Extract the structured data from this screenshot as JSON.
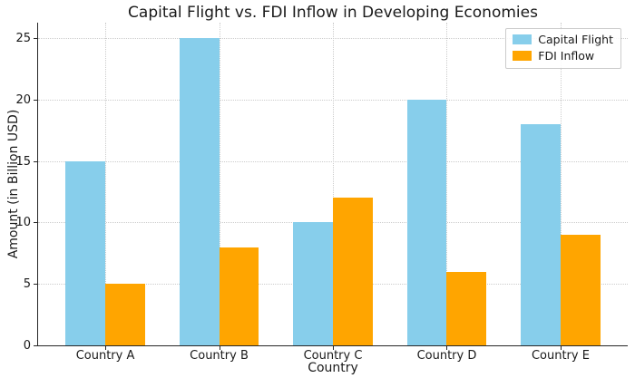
{
  "chart_data": {
    "type": "bar",
    "title": "Capital Flight vs. FDI Inflow in Developing Economies",
    "xlabel": "Country",
    "ylabel": "Amount (in Billion USD)",
    "categories": [
      "Country A",
      "Country B",
      "Country C",
      "Country D",
      "Country E"
    ],
    "series": [
      {
        "name": "Capital Flight",
        "color": "#87CEEB",
        "values": [
          15,
          25,
          10,
          20,
          18
        ]
      },
      {
        "name": "FDI Inflow",
        "color": "#FFA500",
        "values": [
          5,
          8,
          12,
          6,
          9
        ]
      }
    ],
    "yticks": [
      0,
      5,
      10,
      15,
      20,
      25
    ],
    "ylim": [
      0,
      26.25
    ],
    "bar_width_data_units": 0.35,
    "x_margin_data_units": 0.59,
    "grid": true,
    "grid_linestyle": "dotted",
    "legend_position": "upper right"
  },
  "colors": {
    "capital_flight": "#87CEEB",
    "fdi_inflow": "#FFA500",
    "grid": "#cccccc",
    "spine": "#262626",
    "text": "#1a1a1a",
    "background": "#ffffff",
    "legend_border": "#cccccc"
  }
}
